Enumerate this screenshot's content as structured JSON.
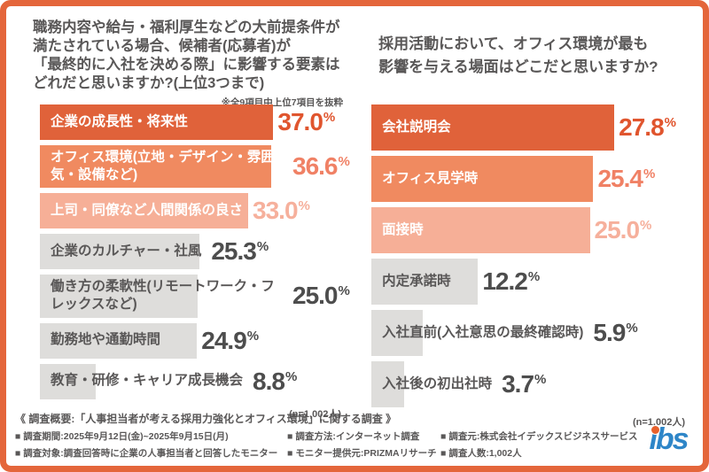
{
  "chart_data": [
    {
      "type": "bar",
      "orientation": "horizontal",
      "title": "職務内容や給与・福利厚生などの大前提条件が\n満たされている場合、候補者(応募者)が\n「最終的に入社を決める際」に影響する要素は\nどれだと思いますか?(上位3つまで)",
      "note": "※全9項目中上位7項目を抜粋",
      "n_label": "(n=1,002人)",
      "unit": "%",
      "grid": false,
      "value_labels_shown": true,
      "categories": [
        "企業の成長性・将来性",
        "オフィス環境(立地・デザイン・雰囲気・設備など)",
        "上司・同僚など人間関係の良さ",
        "企業のカルチャー・社風",
        "働き方の柔軟性(リモートワーク・フレックスなど)",
        "勤務地や通勤時間",
        "教育・研修・キャリア成長機会"
      ],
      "values": [
        37.0,
        36.6,
        33.0,
        25.3,
        25.0,
        24.9,
        8.8
      ],
      "bar_colors": [
        "#E0623A",
        "#F08A60",
        "#F6AF97",
        "#DEDDDB",
        "#DEDDDB",
        "#DEDDDB",
        "#DEDDDB"
      ],
      "value_colors": [
        "#E0552E",
        "#F08165",
        "#F6B09C",
        "#4D4D4D",
        "#4D4D4D",
        "#4D4D4D",
        "#4D4D4D"
      ],
      "label_colors": [
        "#FFFFFF",
        "#FFFFFF",
        "#FFFFFF",
        "#595757",
        "#595757",
        "#595757",
        "#595757"
      ]
    },
    {
      "type": "bar",
      "orientation": "horizontal",
      "title": "採用活動において、オフィス環境が最も\n影響を与える場面はどこだと思いますか?",
      "note": "",
      "n_label": "(n=1,002人)",
      "unit": "%",
      "grid": false,
      "value_labels_shown": true,
      "categories": [
        "会社説明会",
        "オフィス見学時",
        "面接時",
        "内定承諾時",
        "入社直前(入社意思の最終確認時)",
        "入社後の初出社時"
      ],
      "values": [
        27.8,
        25.4,
        25.0,
        12.2,
        5.9,
        3.7
      ],
      "bar_colors": [
        "#E0623A",
        "#F08A60",
        "#F6AF97",
        "#DEDDDB",
        "#DEDDDB",
        "#DEDDDB"
      ],
      "value_colors": [
        "#E0552E",
        "#F08165",
        "#F6B09C",
        "#4D4D4D",
        "#4D4D4D",
        "#4D4D4D"
      ],
      "label_colors": [
        "#FFFFFF",
        "#FFFFFF",
        "#FFFFFF",
        "#595757",
        "#595757",
        "#595757"
      ]
    }
  ],
  "footer": {
    "heading": "《 調査概要:「人事担当者が考える採用力強化とオフィス環境」に関する調査 》",
    "rows": [
      [
        "■ 調査期間:2025年9月12日(金)~2025年9月15日(月)",
        "■ 調査方法:インターネット調査",
        "■ 調査元:株式会社イデックスビジネスサービス"
      ],
      [
        "■ 調査対象:調査回答時に企業の人事担当者と回答したモニター",
        "■ モニター提供元:PRIZMAリサーチ",
        "■ 調査人数:1,002人"
      ]
    ]
  },
  "logo": {
    "text": "ibs",
    "text_color": "#2E86C8",
    "dot_color": "#E8612C"
  },
  "colors": {
    "frame": "#E4663B",
    "text": "#595757",
    "bar_gray": "#DEDDDB",
    "accent_dark": "#E0623A",
    "accent_mid": "#F08A60",
    "accent_light": "#F6AF97"
  }
}
